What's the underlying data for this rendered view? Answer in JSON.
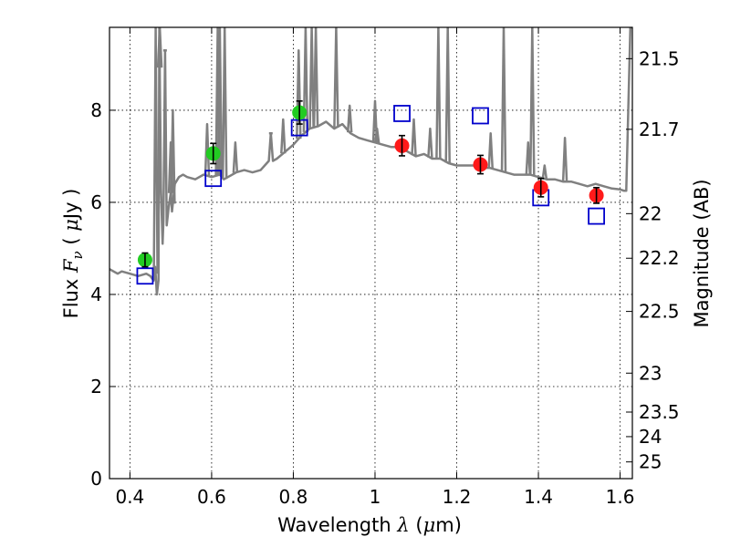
{
  "chart_data": {
    "type": "scatter",
    "title": "",
    "xlabel": "Wavelength",
    "xlabel_symbol": "λ",
    "xlabel_unit_open": "(",
    "xlabel_unit_mu": "μ",
    "xlabel_unit_rest": "m)",
    "ylabel_prefix": "Flux",
    "ylabel_symbol": "F",
    "ylabel_subscript": "ν",
    "ylabel_unit_open": "(",
    "ylabel_unit_mu": "μ",
    "ylabel_unit_rest": "Jy )",
    "y2label": "Magnitude (AB)",
    "xlim": [
      0.35,
      1.63
    ],
    "ylim": [
      0,
      9.8
    ],
    "grid": true,
    "xticks": [
      "0.4",
      "0.6",
      "0.8",
      "1",
      "1.2",
      "1.4",
      "1.6"
    ],
    "yticks": [
      "0",
      "2",
      "4",
      "6",
      "8"
    ],
    "y2ticks": [
      "21.5",
      "21.7",
      "22",
      "22.2",
      "22.5",
      "23",
      "23.5",
      "24",
      "25"
    ],
    "colors": {
      "spectrum": "#808080",
      "optical_points": "#22cc22",
      "nir_points": "#ff1a1a",
      "model_squares": "#0000cc",
      "errorbar": "#000000"
    },
    "series": [
      {
        "marker": "green-circle",
        "x": [
          0.437,
          0.604,
          0.815
        ],
        "y": [
          4.75,
          7.06,
          7.95
        ],
        "yerr": [
          0.15,
          0.22,
          0.25
        ]
      },
      {
        "marker": "red-circle",
        "x": [
          1.066,
          1.258,
          1.406,
          1.542
        ],
        "y": [
          7.23,
          6.82,
          6.32,
          6.15
        ],
        "yerr": [
          0.22,
          0.2,
          0.2,
          0.17
        ]
      },
      {
        "marker": "blue-open-square",
        "x": [
          0.437,
          0.604,
          0.815,
          1.066,
          1.258,
          1.406,
          1.542
        ],
        "y": [
          4.4,
          6.52,
          7.62,
          7.93,
          7.88,
          6.1,
          5.7
        ]
      },
      {
        "marker": "grey-line-spectrum",
        "x": [
          0.35,
          0.37,
          0.38,
          0.4,
          0.42,
          0.44,
          0.45,
          0.458,
          0.462,
          0.466,
          0.47,
          0.472,
          0.476,
          0.48,
          0.482,
          0.486,
          0.49,
          0.495,
          0.5,
          0.503,
          0.51,
          0.52,
          0.53,
          0.54,
          0.56,
          0.58,
          0.6,
          0.62,
          0.63,
          0.64,
          0.66,
          0.68,
          0.7,
          0.72,
          0.74,
          0.745,
          0.75,
          0.76,
          0.78,
          0.8,
          0.82,
          0.84,
          0.86,
          0.88,
          0.9,
          0.92,
          0.94,
          0.96,
          0.98,
          1.0,
          1.02,
          1.04,
          1.06,
          1.08,
          1.1,
          1.12,
          1.14,
          1.16,
          1.18,
          1.2,
          1.22,
          1.24,
          1.26,
          1.28,
          1.3,
          1.32,
          1.34,
          1.36,
          1.38,
          1.4,
          1.42,
          1.44,
          1.46,
          1.48,
          1.5,
          1.52,
          1.54,
          1.56,
          1.58,
          1.6,
          1.61,
          1.615,
          1.62,
          1.625,
          1.63
        ],
        "y": [
          4.55,
          4.45,
          4.5,
          4.45,
          4.4,
          4.45,
          4.4,
          4.3,
          4.6,
          4.0,
          4.3,
          9.8,
          6.3,
          5.1,
          5.6,
          9.3,
          5.5,
          5.9,
          6.2,
          5.8,
          6.4,
          6.55,
          6.6,
          6.55,
          6.5,
          6.6,
          6.55,
          6.6,
          6.5,
          6.55,
          6.65,
          6.7,
          6.65,
          6.7,
          6.9,
          7.5,
          6.9,
          6.95,
          7.1,
          7.25,
          7.45,
          7.6,
          7.65,
          7.75,
          7.6,
          7.7,
          7.5,
          7.4,
          7.35,
          7.3,
          7.25,
          7.2,
          7.2,
          7.1,
          7.0,
          7.05,
          6.95,
          6.95,
          6.85,
          6.8,
          6.8,
          6.8,
          6.75,
          6.75,
          6.7,
          6.65,
          6.6,
          6.6,
          6.6,
          6.55,
          6.5,
          6.5,
          6.45,
          6.45,
          6.4,
          6.35,
          6.4,
          6.35,
          6.3,
          6.28,
          6.25,
          6.25,
          8.0,
          9.8,
          9.8
        ]
      }
    ],
    "emission_lines": [
      {
        "x": 0.463,
        "peak": 9.8
      },
      {
        "x": 0.473,
        "peak": 9.8
      },
      {
        "x": 0.486,
        "peak": 9.3
      },
      {
        "x": 0.5,
        "peak": 7.3
      },
      {
        "x": 0.505,
        "peak": 8.0
      },
      {
        "x": 0.589,
        "peak": 7.7
      },
      {
        "x": 0.615,
        "peak": 9.8
      },
      {
        "x": 0.62,
        "peak": 9.8
      },
      {
        "x": 0.632,
        "peak": 9.8
      },
      {
        "x": 0.658,
        "peak": 7.3
      },
      {
        "x": 0.745,
        "peak": 7.5
      },
      {
        "x": 0.775,
        "peak": 7.8
      },
      {
        "x": 0.813,
        "peak": 9.3
      },
      {
        "x": 0.83,
        "peak": 9.8
      },
      {
        "x": 0.845,
        "peak": 9.8
      },
      {
        "x": 0.855,
        "peak": 9.8
      },
      {
        "x": 0.905,
        "peak": 9.8
      },
      {
        "x": 0.938,
        "peak": 8.1
      },
      {
        "x": 1.005,
        "peak": 7.6
      },
      {
        "x": 1.0,
        "peak": 8.2
      },
      {
        "x": 1.095,
        "peak": 7.8
      },
      {
        "x": 1.135,
        "peak": 7.6
      },
      {
        "x": 1.155,
        "peak": 9.8
      },
      {
        "x": 1.178,
        "peak": 9.8
      },
      {
        "x": 1.283,
        "peak": 7.5
      },
      {
        "x": 1.315,
        "peak": 9.8
      },
      {
        "x": 1.385,
        "peak": 9.8
      },
      {
        "x": 1.375,
        "peak": 7.3
      },
      {
        "x": 1.415,
        "peak": 6.8
      },
      {
        "x": 1.465,
        "peak": 7.4
      }
    ]
  }
}
